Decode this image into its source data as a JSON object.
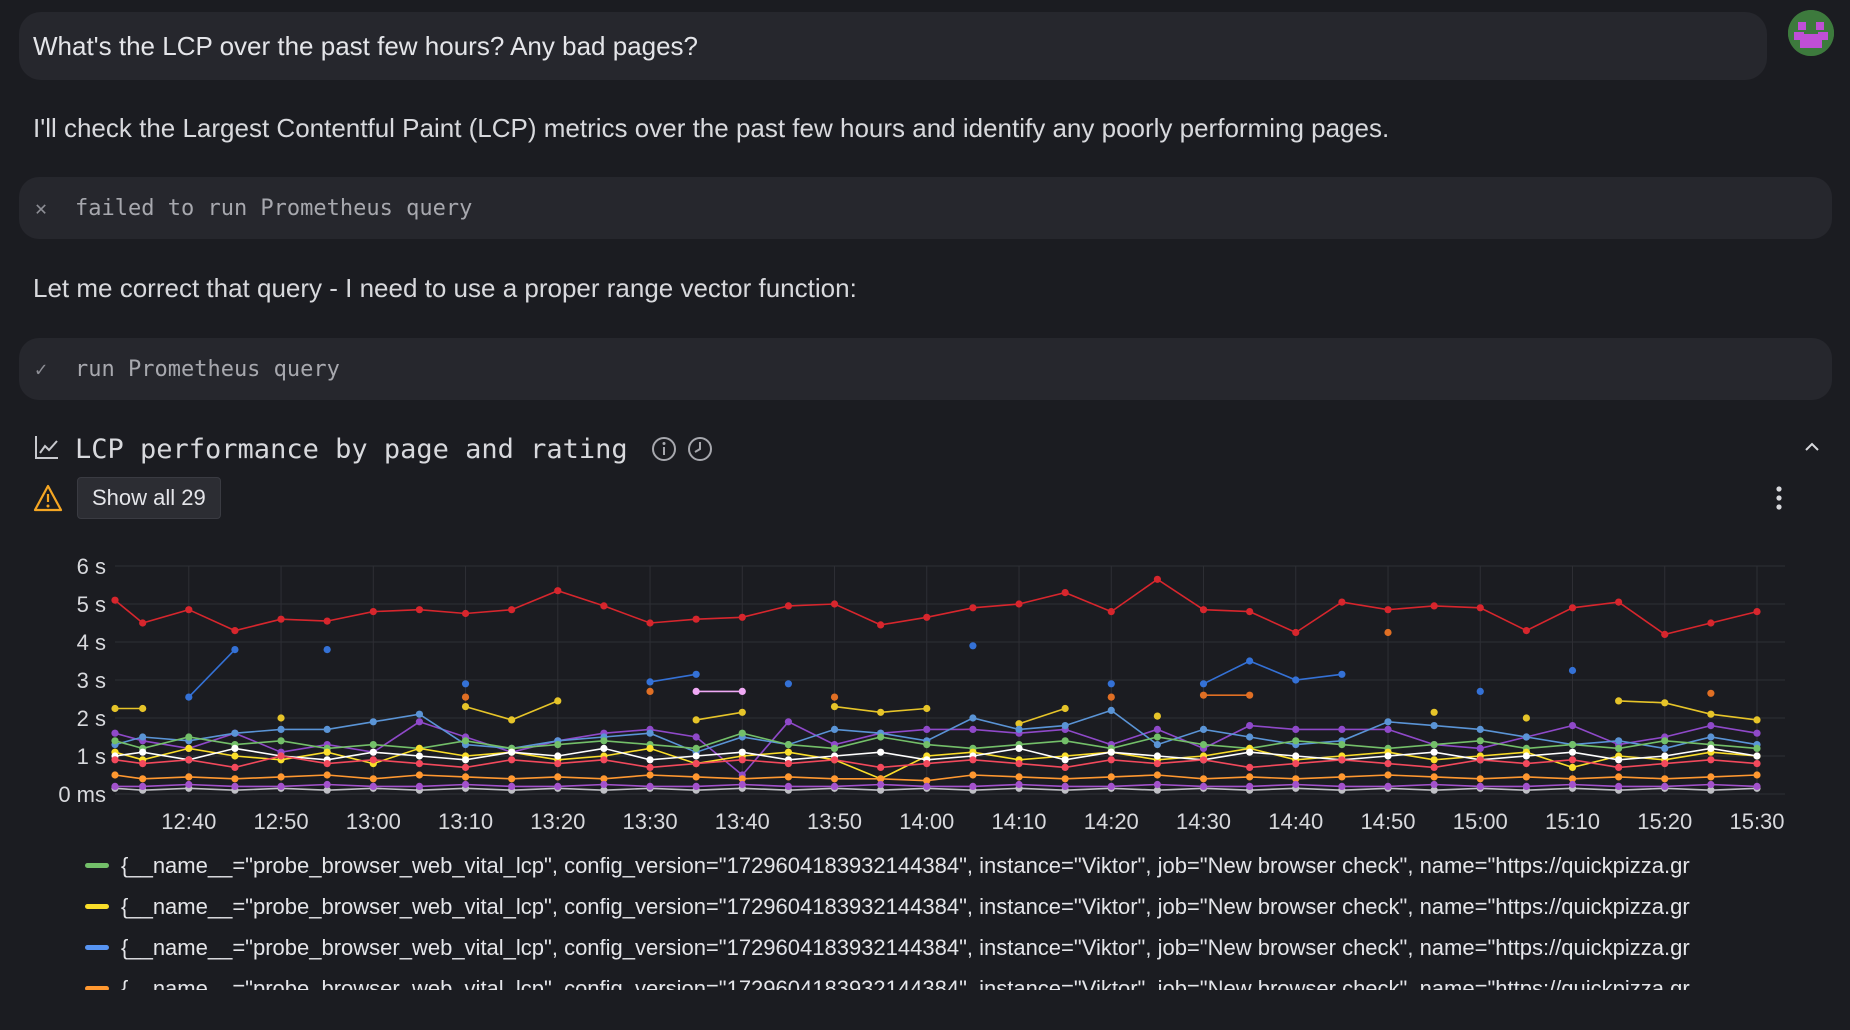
{
  "conversation": {
    "user_message": "What's the LCP over the past few hours? Any bad pages?",
    "assistant_intro": "I'll check the Largest Contentful Paint (LCP) metrics over the past few hours and identify any poorly performing pages.",
    "tool_call_1": {
      "status_icon": "close-icon",
      "label": "failed to run Prometheus query"
    },
    "assistant_correction": "Let me correct that query - I need to use a proper range vector function:",
    "tool_call_2": {
      "status_icon": "check-icon",
      "label": "run Prometheus query"
    }
  },
  "panel": {
    "title": "LCP performance by page and rating",
    "show_all_label": "Show all 29"
  },
  "chart_data": {
    "type": "line",
    "title": "LCP performance by page and rating",
    "y_tick_labels": [
      "0 ms",
      "1 s",
      "2 s",
      "3 s",
      "4 s",
      "5 s",
      "6 s"
    ],
    "ylim": [
      0,
      6
    ],
    "x_tick_labels": [
      "12:40",
      "12:50",
      "13:00",
      "13:10",
      "13:20",
      "13:30",
      "13:40",
      "13:50",
      "14:00",
      "14:10",
      "14:20",
      "14:30",
      "14:40",
      "14:50",
      "15:00",
      "15:10",
      "15:20",
      "15:30"
    ],
    "grid": true,
    "x": [
      "12:32",
      "12:35",
      "12:40",
      "12:45",
      "12:50",
      "12:55",
      "13:00",
      "13:05",
      "13:10",
      "13:15",
      "13:20",
      "13:25",
      "13:30",
      "13:35",
      "13:40",
      "13:45",
      "13:50",
      "13:55",
      "14:00",
      "14:05",
      "14:10",
      "14:15",
      "14:20",
      "14:25",
      "14:30",
      "14:35",
      "14:40",
      "14:45",
      "14:50",
      "14:55",
      "15:00",
      "15:05",
      "15:10",
      "15:15",
      "15:20",
      "15:25",
      "15:30"
    ],
    "series": [
      {
        "color": "#d7262d",
        "values": [
          5.1,
          4.5,
          4.85,
          4.3,
          4.6,
          4.55,
          4.8,
          4.85,
          4.75,
          4.85,
          5.35,
          4.95,
          4.5,
          4.6,
          4.65,
          4.95,
          5.0,
          4.45,
          4.65,
          4.9,
          5.0,
          5.3,
          4.8,
          5.65,
          4.85,
          4.8,
          4.25,
          5.05,
          4.85,
          4.95,
          4.9,
          4.3,
          4.9,
          5.05,
          4.2,
          4.5,
          4.8
        ]
      },
      {
        "color": "#3471d6",
        "values": [
          null,
          null,
          2.55,
          3.8,
          null,
          3.8,
          null,
          null,
          2.9,
          null,
          null,
          null,
          2.95,
          3.15,
          null,
          2.9,
          null,
          null,
          null,
          3.9,
          null,
          null,
          2.9,
          null,
          2.9,
          3.5,
          3.0,
          3.15,
          null,
          null,
          2.7,
          null,
          3.25,
          null,
          null,
          null,
          null
        ]
      },
      {
        "color": "#e6c429",
        "values": [
          2.25,
          2.25,
          null,
          null,
          2.0,
          null,
          null,
          null,
          2.3,
          1.95,
          2.45,
          null,
          null,
          1.95,
          2.15,
          null,
          2.3,
          2.15,
          2.25,
          null,
          1.85,
          2.25,
          null,
          2.05,
          null,
          null,
          null,
          null,
          null,
          2.15,
          null,
          2.0,
          null,
          2.45,
          2.4,
          2.1,
          1.95
        ]
      },
      {
        "color": "#e06f24",
        "values": [
          null,
          null,
          null,
          null,
          null,
          null,
          null,
          null,
          2.55,
          null,
          null,
          null,
          2.7,
          null,
          null,
          null,
          2.55,
          null,
          null,
          null,
          null,
          null,
          2.55,
          null,
          2.6,
          2.6,
          null,
          null,
          4.25,
          null,
          null,
          null,
          null,
          null,
          null,
          2.65,
          null
        ]
      },
      {
        "color": "#f0a9f5",
        "values": [
          null,
          null,
          null,
          null,
          null,
          null,
          null,
          null,
          null,
          null,
          null,
          null,
          null,
          2.7,
          2.7,
          null,
          null,
          null,
          null,
          null,
          null,
          null,
          null,
          null,
          null,
          null,
          null,
          null,
          null,
          null,
          null,
          null,
          null,
          null,
          null,
          null,
          null
        ]
      },
      {
        "color": "#8f49c9",
        "values": [
          1.6,
          1.4,
          1.2,
          1.6,
          1.1,
          1.3,
          1.1,
          1.9,
          1.5,
          1.1,
          1.4,
          1.6,
          1.7,
          1.5,
          0.5,
          1.9,
          1.3,
          1.6,
          1.7,
          1.7,
          1.6,
          1.7,
          1.3,
          1.7,
          1.2,
          1.8,
          1.7,
          1.7,
          1.7,
          1.3,
          1.2,
          1.5,
          1.8,
          1.3,
          1.5,
          1.8,
          1.6
        ]
      },
      {
        "color": "#5a94d6",
        "values": [
          1.3,
          1.5,
          1.4,
          1.6,
          1.7,
          1.7,
          1.9,
          2.1,
          1.3,
          1.2,
          1.4,
          1.5,
          1.6,
          1.1,
          1.5,
          1.3,
          1.7,
          1.6,
          1.4,
          2.0,
          1.7,
          1.8,
          2.2,
          1.3,
          1.7,
          1.5,
          1.3,
          1.4,
          1.9,
          1.8,
          1.7,
          1.5,
          1.3,
          1.4,
          1.2,
          1.5,
          1.3
        ]
      },
      {
        "color": "#73bf69",
        "values": [
          1.4,
          1.2,
          1.5,
          1.3,
          1.4,
          1.2,
          1.3,
          1.2,
          1.4,
          1.2,
          1.3,
          1.4,
          1.3,
          1.2,
          1.6,
          1.3,
          1.2,
          1.5,
          1.3,
          1.2,
          1.3,
          1.4,
          1.2,
          1.5,
          1.3,
          1.2,
          1.4,
          1.3,
          1.2,
          1.3,
          1.4,
          1.2,
          1.3,
          1.2,
          1.4,
          1.3,
          1.2
        ]
      },
      {
        "color": "#fade2a",
        "values": [
          1.1,
          0.9,
          1.2,
          1.0,
          0.9,
          1.1,
          0.8,
          1.2,
          1.0,
          1.1,
          0.9,
          1.0,
          1.2,
          0.8,
          1.0,
          1.1,
          0.9,
          0.4,
          1.0,
          1.1,
          0.9,
          1.0,
          1.1,
          0.9,
          1.0,
          1.2,
          0.9,
          1.0,
          1.1,
          0.9,
          1.0,
          1.1,
          0.7,
          1.0,
          0.9,
          1.1,
          1.0
        ]
      },
      {
        "color": "#ffffff",
        "values": [
          1.0,
          1.1,
          0.9,
          1.2,
          1.0,
          0.9,
          1.1,
          1.0,
          0.9,
          1.1,
          1.0,
          1.2,
          0.9,
          1.0,
          1.1,
          0.9,
          1.0,
          1.1,
          0.9,
          1.0,
          1.2,
          0.9,
          1.1,
          1.0,
          0.9,
          1.1,
          1.0,
          0.9,
          1.0,
          1.1,
          0.9,
          1.0,
          1.1,
          0.9,
          1.0,
          1.2,
          1.0
        ]
      },
      {
        "color": "#ff9830",
        "values": [
          0.5,
          0.4,
          0.45,
          0.4,
          0.45,
          0.5,
          0.4,
          0.5,
          0.45,
          0.4,
          0.45,
          0.4,
          0.5,
          0.45,
          0.4,
          0.45,
          0.4,
          0.4,
          0.35,
          0.5,
          0.45,
          0.4,
          0.45,
          0.5,
          0.4,
          0.45,
          0.4,
          0.45,
          0.5,
          0.45,
          0.4,
          0.45,
          0.4,
          0.45,
          0.4,
          0.45,
          0.5
        ]
      },
      {
        "color": "#f2495c",
        "values": [
          0.9,
          0.8,
          0.9,
          0.7,
          1.0,
          0.8,
          0.9,
          0.8,
          0.7,
          0.9,
          0.8,
          0.9,
          0.7,
          0.8,
          0.9,
          0.8,
          0.9,
          0.7,
          0.8,
          0.9,
          0.8,
          0.7,
          0.9,
          0.8,
          0.9,
          0.7,
          0.8,
          0.9,
          0.8,
          0.7,
          0.9,
          0.8,
          0.9,
          0.7,
          0.8,
          0.9,
          0.8
        ]
      },
      {
        "color": "#c0c0c6",
        "values": [
          0.15,
          0.1,
          0.15,
          0.1,
          0.15,
          0.1,
          0.15,
          0.1,
          0.15,
          0.1,
          0.15,
          0.1,
          0.15,
          0.1,
          0.15,
          0.1,
          0.15,
          0.1,
          0.15,
          0.1,
          0.15,
          0.1,
          0.15,
          0.1,
          0.15,
          0.1,
          0.15,
          0.1,
          0.15,
          0.1,
          0.15,
          0.1,
          0.15,
          0.1,
          0.15,
          0.1,
          0.15
        ]
      },
      {
        "color": "#a352cc",
        "values": [
          0.2,
          0.2,
          0.25,
          0.2,
          0.2,
          0.25,
          0.2,
          0.2,
          0.25,
          0.2,
          0.2,
          0.25,
          0.2,
          0.2,
          0.25,
          0.2,
          0.2,
          0.25,
          0.2,
          0.2,
          0.25,
          0.2,
          0.2,
          0.25,
          0.2,
          0.2,
          0.25,
          0.2,
          0.2,
          0.25,
          0.2,
          0.2,
          0.25,
          0.2,
          0.2,
          0.25,
          0.2
        ]
      }
    ]
  },
  "legend": [
    {
      "color": "#73bf69",
      "label": "{__name__=\"probe_browser_web_vital_lcp\", config_version=\"1729604183932144384\", instance=\"Viktor\", job=\"New browser check\", name=\"https://quickpizza.gr"
    },
    {
      "color": "#fade2a",
      "label": "{__name__=\"probe_browser_web_vital_lcp\", config_version=\"1729604183932144384\", instance=\"Viktor\", job=\"New browser check\", name=\"https://quickpizza.gr"
    },
    {
      "color": "#5794f2",
      "label": "{__name__=\"probe_browser_web_vital_lcp\", config_version=\"1729604183932144384\", instance=\"Viktor\", job=\"New browser check\", name=\"https://quickpizza.gr"
    },
    {
      "color": "#ff9830",
      "label": "{__name__=\"probe_browser_web_vital_lcp\", config_version=\"1729604183932144384\", instance=\"Viktor\", job=\"New browser check\", name=\"https://quickpizza.gr"
    }
  ]
}
